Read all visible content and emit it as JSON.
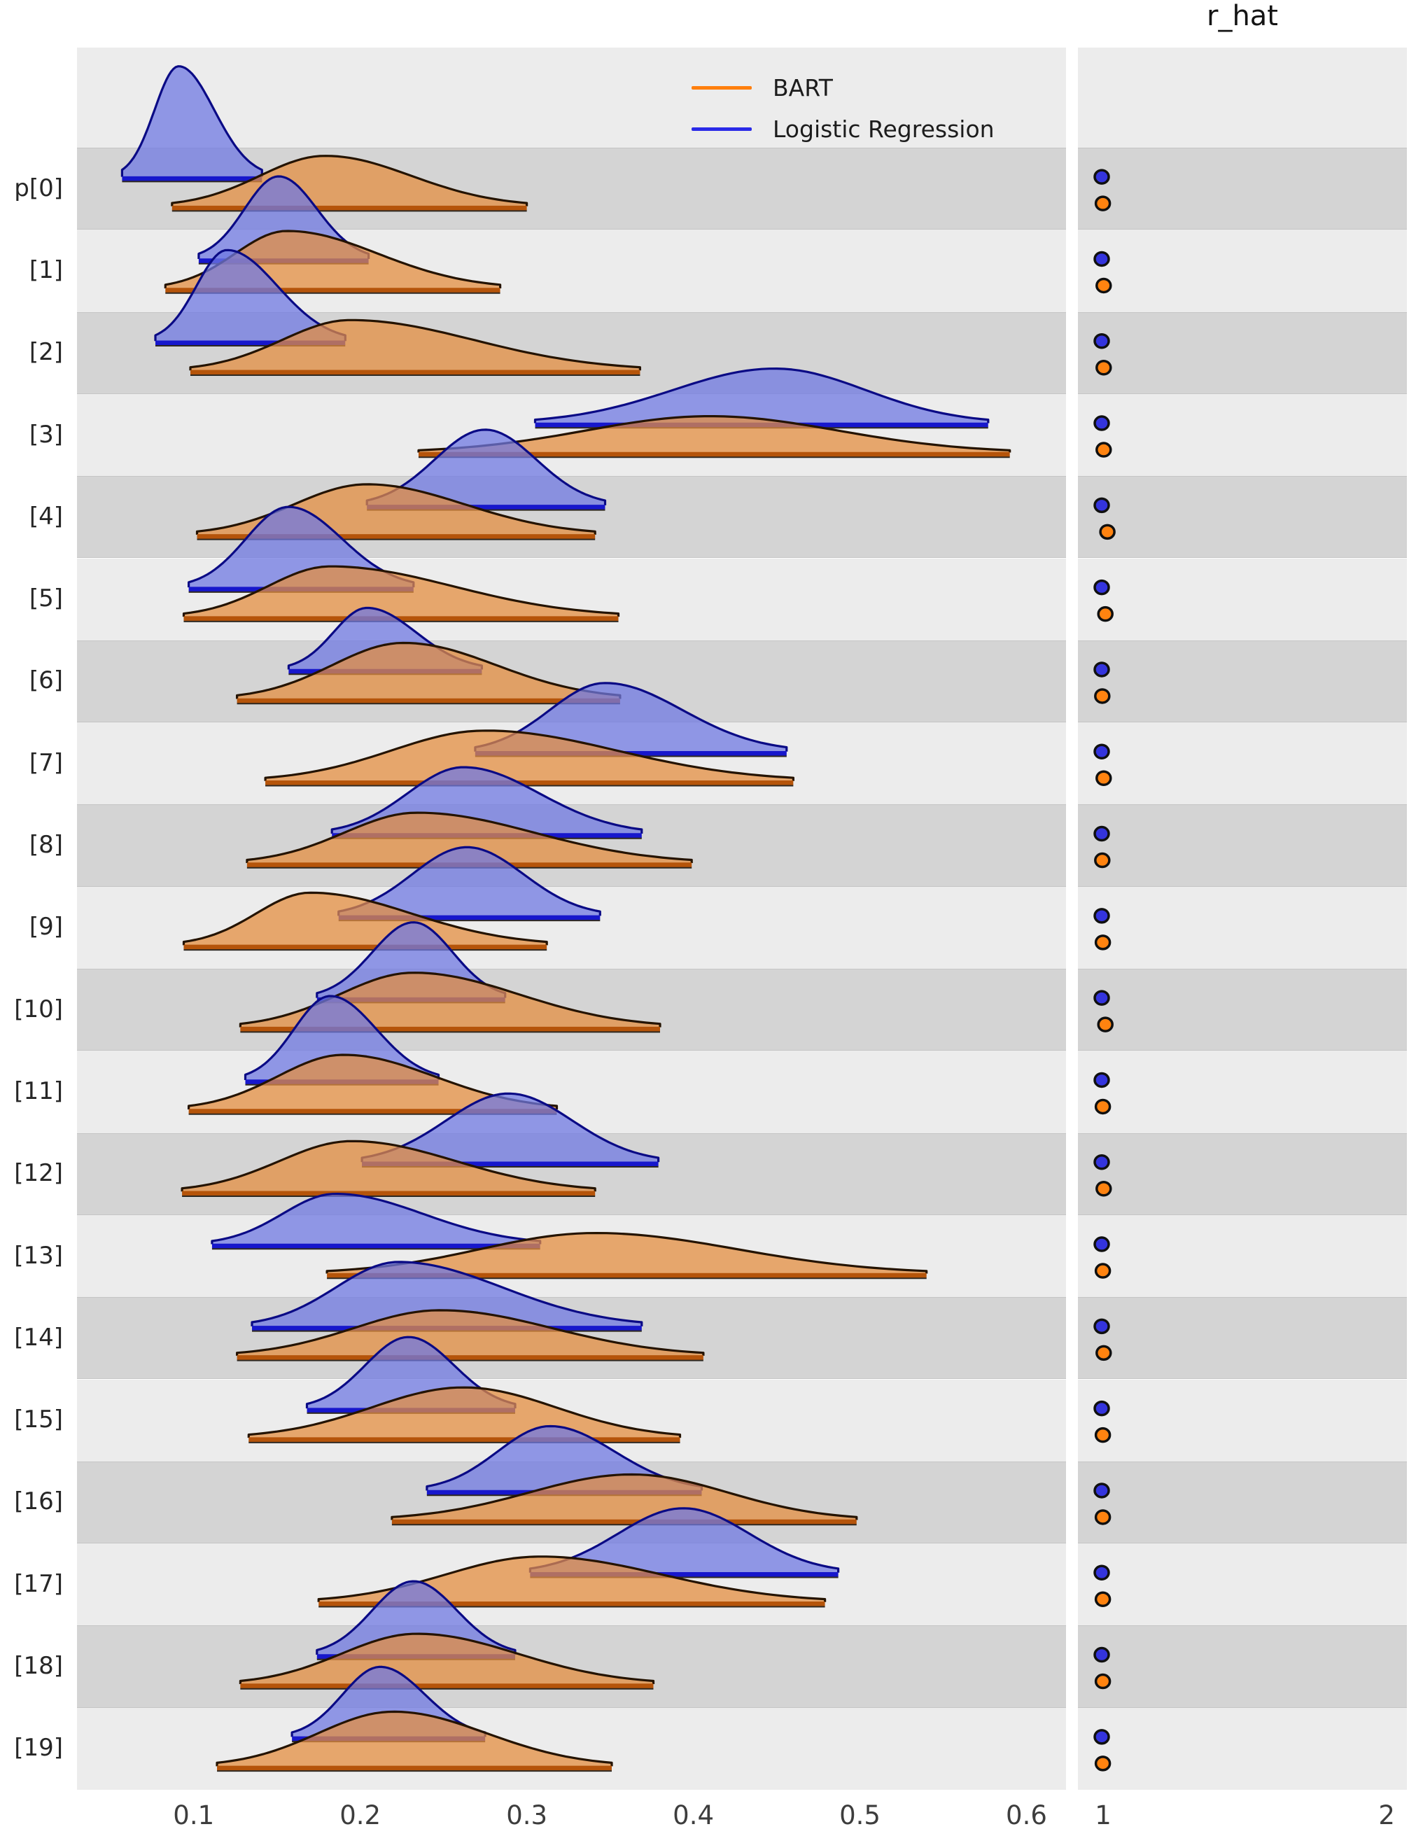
{
  "chart_data": {
    "type": "ridgeplot-forest",
    "title": "r_hat",
    "legend": [
      {
        "name": "BART",
        "color": "#ff7f0e"
      },
      {
        "name": "Logistic Regression",
        "color": "#2a2ae8"
      }
    ],
    "x_axis": {
      "ticks": [
        0.1,
        0.2,
        0.3,
        0.4,
        0.5,
        0.6
      ],
      "domain": [
        0.03,
        0.624
      ],
      "grid": false
    },
    "rhat_axis": {
      "ticks": [
        1,
        2
      ],
      "domain": [
        0.91,
        2.07
      ]
    },
    "colors": {
      "bart_fill": "rgba(228,142,64,0.74)",
      "bart_edge": "#241300",
      "bart_base": "#b5540a",
      "bart_dot": "#ff8310",
      "lr_fill": "rgba(110,120,226,0.74)",
      "lr_edge": "#0a0a85",
      "lr_base": "#1717cc",
      "lr_dot": "#3434dd",
      "dot_edge": "#101010",
      "stripe_dark": "#d4d4d4",
      "stripe_light": "#ececec"
    },
    "rows": [
      {
        "label": "p[0]",
        "lr": {
          "lo": 0.057,
          "mode": 0.091,
          "hi": 0.141,
          "h": 158,
          "r_hat": 0.995
        },
        "bart": {
          "lo": 0.087,
          "mode": 0.179,
          "hi": 0.3,
          "h": 72,
          "r_hat": 0.999
        }
      },
      {
        "label": "[1]",
        "lr": {
          "lo": 0.103,
          "mode": 0.151,
          "hi": 0.205,
          "h": 118,
          "r_hat": 0.995
        },
        "bart": {
          "lo": 0.083,
          "mode": 0.156,
          "hi": 0.284,
          "h": 82,
          "r_hat": 1.002
        }
      },
      {
        "label": "[2]",
        "lr": {
          "lo": 0.077,
          "mode": 0.12,
          "hi": 0.191,
          "h": 130,
          "r_hat": 0.995
        },
        "bart": {
          "lo": 0.098,
          "mode": 0.194,
          "hi": 0.368,
          "h": 72,
          "r_hat": 1.002
        }
      },
      {
        "label": "[3]",
        "lr": {
          "lo": 0.305,
          "mode": 0.449,
          "hi": 0.577,
          "h": 78,
          "r_hat": 0.995
        },
        "bart": {
          "lo": 0.235,
          "mode": 0.41,
          "hi": 0.59,
          "h": 52,
          "r_hat": 1.002
        }
      },
      {
        "label": "[4]",
        "lr": {
          "lo": 0.204,
          "mode": 0.275,
          "hi": 0.347,
          "h": 108,
          "r_hat": 0.995
        },
        "bart": {
          "lo": 0.102,
          "mode": 0.204,
          "hi": 0.341,
          "h": 72,
          "r_hat": 1.015
        }
      },
      {
        "label": "[5]",
        "lr": {
          "lo": 0.097,
          "mode": 0.157,
          "hi": 0.232,
          "h": 115,
          "r_hat": 0.995
        },
        "bart": {
          "lo": 0.094,
          "mode": 0.182,
          "hi": 0.355,
          "h": 72,
          "r_hat": 1.008
        }
      },
      {
        "label": "[6]",
        "lr": {
          "lo": 0.157,
          "mode": 0.204,
          "hi": 0.273,
          "h": 88,
          "r_hat": 0.995
        },
        "bart": {
          "lo": 0.126,
          "mode": 0.226,
          "hi": 0.356,
          "h": 80,
          "r_hat": 0.997
        }
      },
      {
        "label": "[7]",
        "lr": {
          "lo": 0.269,
          "mode": 0.347,
          "hi": 0.456,
          "h": 98,
          "r_hat": 0.995
        },
        "bart": {
          "lo": 0.143,
          "mode": 0.275,
          "hi": 0.46,
          "h": 72,
          "r_hat": 1.002
        }
      },
      {
        "label": "[8]",
        "lr": {
          "lo": 0.183,
          "mode": 0.262,
          "hi": 0.369,
          "h": 95,
          "r_hat": 0.995
        },
        "bart": {
          "lo": 0.132,
          "mode": 0.234,
          "hi": 0.399,
          "h": 72,
          "r_hat": 0.997
        }
      },
      {
        "label": "[9]",
        "lr": {
          "lo": 0.187,
          "mode": 0.264,
          "hi": 0.344,
          "h": 98,
          "r_hat": 0.995
        },
        "bart": {
          "lo": 0.094,
          "mode": 0.17,
          "hi": 0.312,
          "h": 75,
          "r_hat": 0.999
        }
      },
      {
        "label": "[10]",
        "lr": {
          "lo": 0.174,
          "mode": 0.232,
          "hi": 0.287,
          "h": 108,
          "r_hat": 0.995
        },
        "bart": {
          "lo": 0.128,
          "mode": 0.232,
          "hi": 0.38,
          "h": 78,
          "r_hat": 1.008
        }
      },
      {
        "label": "[11]",
        "lr": {
          "lo": 0.131,
          "mode": 0.182,
          "hi": 0.247,
          "h": 120,
          "r_hat": 0.995
        },
        "bart": {
          "lo": 0.097,
          "mode": 0.19,
          "hi": 0.318,
          "h": 78,
          "r_hat": 0.999
        }
      },
      {
        "label": "[12]",
        "lr": {
          "lo": 0.201,
          "mode": 0.289,
          "hi": 0.379,
          "h": 98,
          "r_hat": 0.995
        },
        "bart": {
          "lo": 0.093,
          "mode": 0.195,
          "hi": 0.341,
          "h": 72,
          "r_hat": 1.002
        }
      },
      {
        "label": "[13]",
        "lr": {
          "lo": 0.111,
          "mode": 0.185,
          "hi": 0.308,
          "h": 72,
          "r_hat": 0.995
        },
        "bart": {
          "lo": 0.18,
          "mode": 0.341,
          "hi": 0.54,
          "h": 58,
          "r_hat": 0.999
        }
      },
      {
        "label": "[14]",
        "lr": {
          "lo": 0.135,
          "mode": 0.223,
          "hi": 0.369,
          "h": 92,
          "r_hat": 0.995
        },
        "bart": {
          "lo": 0.126,
          "mode": 0.248,
          "hi": 0.406,
          "h": 65,
          "r_hat": 1.002
        }
      },
      {
        "label": "[15]",
        "lr": {
          "lo": 0.168,
          "mode": 0.229,
          "hi": 0.293,
          "h": 102,
          "r_hat": 0.995
        },
        "bart": {
          "lo": 0.133,
          "mode": 0.262,
          "hi": 0.392,
          "h": 72,
          "r_hat": 0.999
        }
      },
      {
        "label": "[16]",
        "lr": {
          "lo": 0.24,
          "mode": 0.314,
          "hi": 0.405,
          "h": 92,
          "r_hat": 0.995
        },
        "bart": {
          "lo": 0.219,
          "mode": 0.363,
          "hi": 0.498,
          "h": 65,
          "r_hat": 0.999
        }
      },
      {
        "label": "[17]",
        "lr": {
          "lo": 0.302,
          "mode": 0.394,
          "hi": 0.487,
          "h": 92,
          "r_hat": 0.995
        },
        "bart": {
          "lo": 0.175,
          "mode": 0.308,
          "hi": 0.479,
          "h": 65,
          "r_hat": 0.999
        }
      },
      {
        "label": "[18]",
        "lr": {
          "lo": 0.174,
          "mode": 0.232,
          "hi": 0.293,
          "h": 105,
          "r_hat": 0.995
        },
        "bart": {
          "lo": 0.128,
          "mode": 0.234,
          "hi": 0.376,
          "h": 72,
          "r_hat": 0.999
        }
      },
      {
        "label": "[19]",
        "lr": {
          "lo": 0.159,
          "mode": 0.212,
          "hi": 0.275,
          "h": 100,
          "r_hat": 0.995
        },
        "bart": {
          "lo": 0.114,
          "mode": 0.22,
          "hi": 0.351,
          "h": 78,
          "r_hat": 0.999
        }
      }
    ]
  }
}
